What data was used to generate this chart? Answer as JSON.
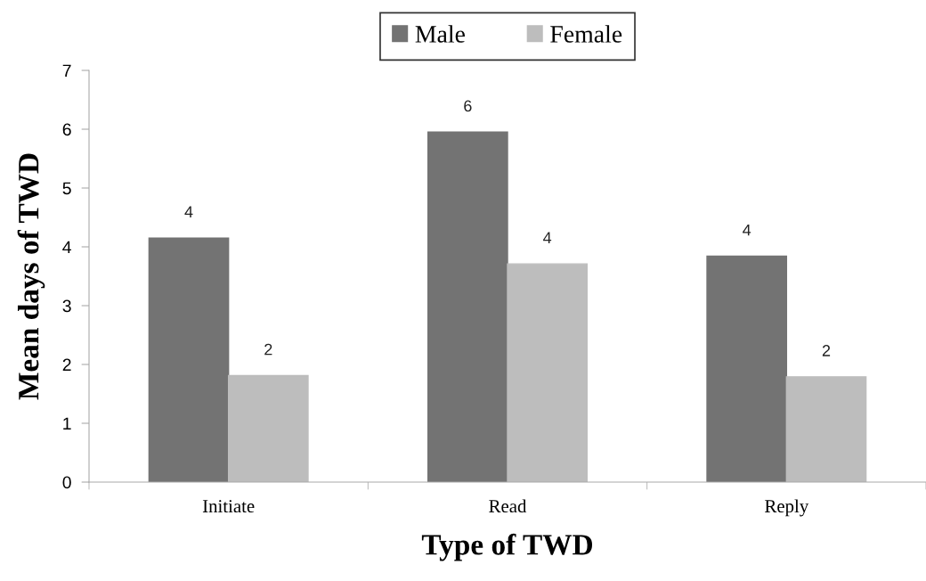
{
  "chart_data": {
    "type": "bar",
    "xlabel": "Type of TWD",
    "ylabel": "Mean days of TWD",
    "categories": [
      "Initiate",
      "Read",
      "Reply"
    ],
    "series": [
      {
        "name": "Male",
        "color": "#737373",
        "values": [
          4.15,
          5.95,
          3.84
        ],
        "value_labels": [
          "4",
          "6",
          "4"
        ]
      },
      {
        "name": "Female",
        "color": "#bdbdbd",
        "values": [
          1.81,
          3.71,
          1.79
        ],
        "value_labels": [
          "2",
          "4",
          "2"
        ]
      }
    ],
    "ylim": [
      0,
      7
    ],
    "yticks": [
      0,
      1,
      2,
      3,
      4,
      5,
      6,
      7
    ],
    "grid": false,
    "legend": "top"
  }
}
